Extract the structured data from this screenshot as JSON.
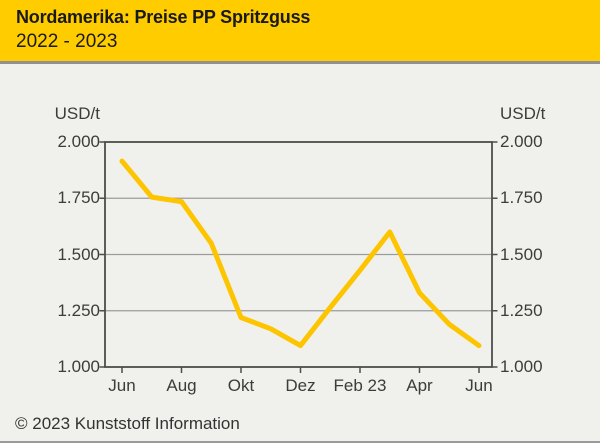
{
  "header": {
    "title": "Nordamerika: Preise PP Spritzguss",
    "subtitle": "2022 - 2023"
  },
  "footer": {
    "copyright": "© 2023 Kunststoff Information"
  },
  "colors": {
    "header_background": "#ffcc00",
    "line": "#fdc400",
    "background": "#f0f0ec",
    "frame": "#4d4d4d",
    "gridline": "#9b9b9b",
    "text": "#3c3c3c"
  },
  "chart_data": {
    "type": "line",
    "title": "Nordamerika: Preise PP Spritzguss 2022 - 2023",
    "ylabel_left": "USD/t",
    "ylabel_right": "USD/t",
    "xlabel": "",
    "categories": [
      "Jun 22",
      "Jul 22",
      "Aug 22",
      "Sep 22",
      "Okt 22",
      "Nov 22",
      "Dez 22",
      "Jan 23",
      "Feb 23",
      "Mär 23",
      "Apr 23",
      "Mai 23",
      "Jun 23"
    ],
    "values": [
      1915,
      1755,
      1735,
      1550,
      1220,
      1170,
      1095,
      1265,
      1430,
      1600,
      1330,
      1190,
      1095
    ],
    "ylim": [
      1000,
      2000
    ],
    "yticks": [
      {
        "value": 2000,
        "label": "2.000"
      },
      {
        "value": 1750,
        "label": "1.750"
      },
      {
        "value": 1500,
        "label": "1.500"
      },
      {
        "value": 1250,
        "label": "1.250"
      },
      {
        "value": 1000,
        "label": "1.000"
      }
    ],
    "gridlines": [
      1750,
      1500,
      1250
    ],
    "xticks": [
      {
        "month": 0,
        "label": "Jun"
      },
      {
        "month": 2,
        "label": "Aug"
      },
      {
        "month": 4,
        "label": "Okt"
      },
      {
        "month": 6,
        "label": "Dez"
      },
      {
        "month": 8,
        "label": "Feb 23"
      },
      {
        "month": 10,
        "label": "Apr"
      },
      {
        "month": 12,
        "label": "Jun"
      }
    ],
    "grid": true,
    "legend": "none"
  }
}
